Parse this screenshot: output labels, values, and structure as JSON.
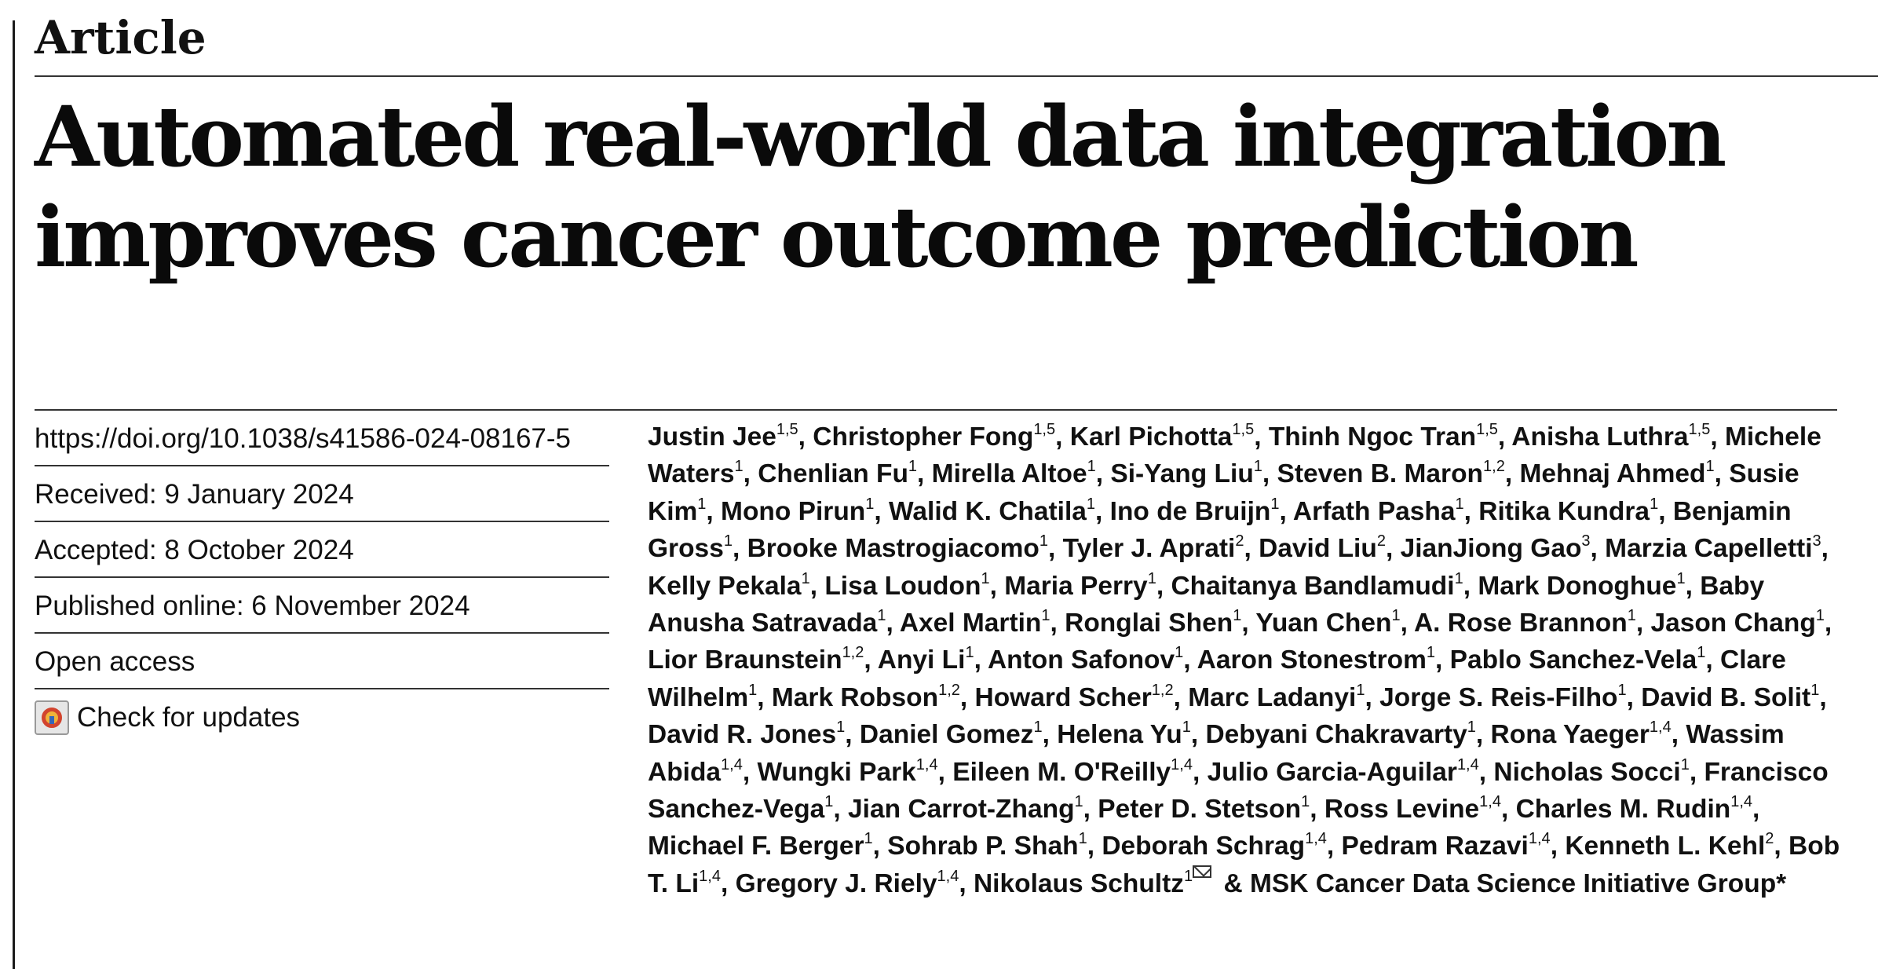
{
  "article_type": "Article",
  "title": {
    "line1": "Automated real-world data integration",
    "line2": "improves cancer outcome prediction"
  },
  "meta": {
    "doi": "https://doi.org/10.1038/s41586-024-08167-5",
    "received": "Received: 9 January 2024",
    "accepted": "Accepted: 8 October 2024",
    "published": "Published online: 6 November 2024",
    "open_access": "Open access",
    "check_updates": "Check for updates"
  },
  "authors": [
    {
      "name": "Justin Jee",
      "aff": "1,5"
    },
    {
      "name": "Christopher Fong",
      "aff": "1,5"
    },
    {
      "name": "Karl Pichotta",
      "aff": "1,5"
    },
    {
      "name": "Thinh Ngoc Tran",
      "aff": "1,5"
    },
    {
      "name": "Anisha Luthra",
      "aff": "1,5"
    },
    {
      "name": "Michele Waters",
      "aff": "1"
    },
    {
      "name": "Chenlian Fu",
      "aff": "1"
    },
    {
      "name": "Mirella Altoe",
      "aff": "1"
    },
    {
      "name": "Si-Yang Liu",
      "aff": "1"
    },
    {
      "name": "Steven B. Maron",
      "aff": "1,2"
    },
    {
      "name": "Mehnaj Ahmed",
      "aff": "1"
    },
    {
      "name": "Susie Kim",
      "aff": "1"
    },
    {
      "name": "Mono Pirun",
      "aff": "1"
    },
    {
      "name": "Walid K. Chatila",
      "aff": "1"
    },
    {
      "name": "Ino de Bruijn",
      "aff": "1"
    },
    {
      "name": "Arfath Pasha",
      "aff": "1"
    },
    {
      "name": "Ritika Kundra",
      "aff": "1"
    },
    {
      "name": "Benjamin Gross",
      "aff": "1"
    },
    {
      "name": "Brooke Mastrogiacomo",
      "aff": "1"
    },
    {
      "name": "Tyler J. Aprati",
      "aff": "2"
    },
    {
      "name": "David Liu",
      "aff": "2"
    },
    {
      "name": "JianJiong Gao",
      "aff": "3"
    },
    {
      "name": "Marzia Capelletti",
      "aff": "3"
    },
    {
      "name": "Kelly Pekala",
      "aff": "1"
    },
    {
      "name": "Lisa Loudon",
      "aff": "1"
    },
    {
      "name": "Maria Perry",
      "aff": "1"
    },
    {
      "name": "Chaitanya Bandlamudi",
      "aff": "1"
    },
    {
      "name": "Mark Donoghue",
      "aff": "1"
    },
    {
      "name": "Baby Anusha Satravada",
      "aff": "1"
    },
    {
      "name": "Axel Martin",
      "aff": "1"
    },
    {
      "name": "Ronglai Shen",
      "aff": "1"
    },
    {
      "name": "Yuan Chen",
      "aff": "1"
    },
    {
      "name": "A. Rose Brannon",
      "aff": "1"
    },
    {
      "name": "Jason Chang",
      "aff": "1"
    },
    {
      "name": "Lior Braunstein",
      "aff": "1,2"
    },
    {
      "name": "Anyi Li",
      "aff": "1"
    },
    {
      "name": "Anton Safonov",
      "aff": "1"
    },
    {
      "name": "Aaron Stonestrom",
      "aff": "1"
    },
    {
      "name": "Pablo Sanchez-Vela",
      "aff": "1"
    },
    {
      "name": "Clare Wilhelm",
      "aff": "1"
    },
    {
      "name": "Mark Robson",
      "aff": "1,2"
    },
    {
      "name": "Howard Scher",
      "aff": "1,2"
    },
    {
      "name": "Marc Ladanyi",
      "aff": "1"
    },
    {
      "name": "Jorge S. Reis-Filho",
      "aff": "1"
    },
    {
      "name": "David B. Solit",
      "aff": "1"
    },
    {
      "name": "David R. Jones",
      "aff": "1"
    },
    {
      "name": "Daniel Gomez",
      "aff": "1"
    },
    {
      "name": "Helena Yu",
      "aff": "1"
    },
    {
      "name": "Debyani Chakravarty",
      "aff": "1"
    },
    {
      "name": "Rona Yaeger",
      "aff": "1,4"
    },
    {
      "name": "Wassim Abida",
      "aff": "1,4"
    },
    {
      "name": "Wungki Park",
      "aff": "1,4"
    },
    {
      "name": "Eileen M. O'Reilly",
      "aff": "1,4"
    },
    {
      "name": "Julio Garcia-Aguilar",
      "aff": "1,4"
    },
    {
      "name": "Nicholas Socci",
      "aff": "1"
    },
    {
      "name": "Francisco Sanchez-Vega",
      "aff": "1"
    },
    {
      "name": "Jian Carrot-Zhang",
      "aff": "1"
    },
    {
      "name": "Peter D. Stetson",
      "aff": "1"
    },
    {
      "name": "Ross Levine",
      "aff": "1,4"
    },
    {
      "name": "Charles M. Rudin",
      "aff": "1,4"
    },
    {
      "name": "Michael F. Berger",
      "aff": "1"
    },
    {
      "name": "Sohrab P. Shah",
      "aff": "1"
    },
    {
      "name": "Deborah Schrag",
      "aff": "1,4"
    },
    {
      "name": "Pedram Razavi",
      "aff": "1,4"
    },
    {
      "name": "Kenneth L. Kehl",
      "aff": "2"
    },
    {
      "name": "Bob T. Li",
      "aff": "1,4"
    },
    {
      "name": "Gregory J. Riely",
      "aff": "1,4"
    },
    {
      "name": "Nikolaus Schultz",
      "aff": "1",
      "corresponding": true
    }
  ],
  "author_group": "& MSK Cancer Data Science Initiative Group*"
}
